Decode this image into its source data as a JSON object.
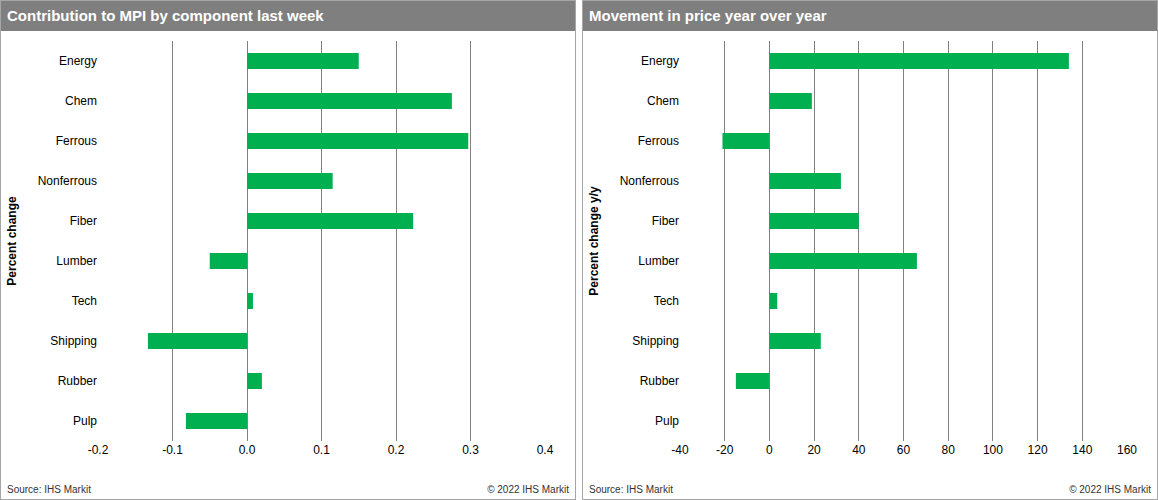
{
  "chart_data": [
    {
      "type": "bar",
      "orientation": "horizontal",
      "title": "Contribution to MPI by component last week",
      "ylabel": "Percent change",
      "categories": [
        "Energy",
        "Chem",
        "Ferrous",
        "Nonferrous",
        "Fiber",
        "Lumber",
        "Tech",
        "Shipping",
        "Rubber",
        "Pulp"
      ],
      "values": [
        0.15,
        0.275,
        0.297,
        0.115,
        0.223,
        -0.05,
        0.008,
        -0.133,
        0.02,
        -0.082
      ],
      "color": "#00b050",
      "xlim": [
        -0.2,
        0.4
      ],
      "xticks": [
        -0.2,
        -0.1,
        {
          "value": 0,
          "label": "0.0"
        },
        0.1,
        0.2,
        0.3,
        0.4
      ],
      "grid": true,
      "source": "Source: IHS Markit",
      "copyright": "© 2022 IHS Markit"
    },
    {
      "type": "bar",
      "orientation": "horizontal",
      "title": "Movement in price year over year",
      "ylabel": "Percent change y/y",
      "categories": [
        "Energy",
        "Chem",
        "Ferrous",
        "Nonferrous",
        "Fiber",
        "Lumber",
        "Tech",
        "Shipping",
        "Rubber",
        "Pulp"
      ],
      "values": [
        134,
        19,
        -21,
        32,
        40,
        66,
        3.5,
        23,
        -15,
        0
      ],
      "color": "#00b050",
      "xlim": [
        -40,
        160
      ],
      "xticks": [
        -40,
        -20,
        0,
        20,
        40,
        60,
        80,
        100,
        120,
        140,
        160
      ],
      "grid": true,
      "source": "Source: IHS Markit",
      "copyright": "© 2022 IHS Markit"
    }
  ]
}
